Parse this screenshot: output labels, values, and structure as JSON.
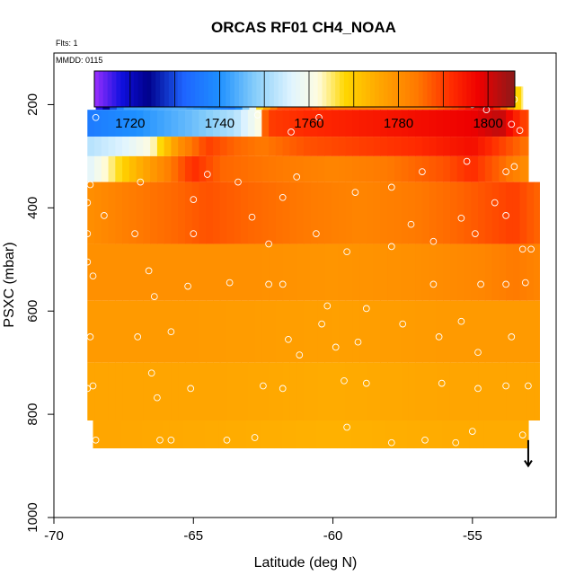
{
  "chart_data": {
    "type": "heatmap",
    "title": "ORCAS RF01 CH4_NOAA",
    "flts_label": "Flts: 1",
    "mmdd_label": "MMDD: 0115",
    "xlabel": "Latitude (deg N)",
    "ylabel": "PSXC (mbar)",
    "xlim": [
      -70,
      -52
    ],
    "ylim": [
      1000,
      100
    ],
    "x_ticks": [
      -70,
      -65,
      -60,
      -55
    ],
    "y_ticks": [
      200,
      400,
      600,
      800,
      1000
    ],
    "colorbar": {
      "range": [
        1712,
        1806
      ],
      "ticks": [
        1720,
        1740,
        1760,
        1780,
        1800
      ],
      "stops": [
        {
          "v": 1712,
          "c": "#9b30ff"
        },
        {
          "v": 1718,
          "c": "#1010e0"
        },
        {
          "v": 1724,
          "c": "#00008b"
        },
        {
          "v": 1732,
          "c": "#1e64ff"
        },
        {
          "v": 1740,
          "c": "#1e90ff"
        },
        {
          "v": 1748,
          "c": "#87cefa"
        },
        {
          "v": 1756,
          "c": "#e0f4ff"
        },
        {
          "v": 1762,
          "c": "#fffde0"
        },
        {
          "v": 1768,
          "c": "#ffd700"
        },
        {
          "v": 1776,
          "c": "#ffa500"
        },
        {
          "v": 1784,
          "c": "#ff7a00"
        },
        {
          "v": 1792,
          "c": "#ff2a00"
        },
        {
          "v": 1798,
          "c": "#ee0000"
        },
        {
          "v": 1806,
          "c": "#8b1a1a"
        }
      ]
    },
    "layers": [
      {
        "p_top": 165,
        "p_bot": 210,
        "lat_min": -68.5,
        "lat_max": -53.2,
        "profile": [
          [
            -68.5,
            1714
          ],
          [
            -68.0,
            1726
          ],
          [
            -67.5,
            1742
          ],
          [
            -65.5,
            1744
          ],
          [
            -64.5,
            1740
          ],
          [
            -63.5,
            1736
          ],
          [
            -63.0,
            1752
          ],
          [
            -62.5,
            1772
          ],
          [
            -62.0,
            1788
          ],
          [
            -61.0,
            1790
          ],
          [
            -60.0,
            1784
          ],
          [
            -58.0,
            1782
          ],
          [
            -56.5,
            1784
          ],
          [
            -55.5,
            1790
          ],
          [
            -54.5,
            1800
          ],
          [
            -54.0,
            1790
          ],
          [
            -53.5,
            1772
          ],
          [
            -53.2,
            1764
          ]
        ]
      },
      {
        "p_top": 210,
        "p_bot": 262,
        "lat_min": -68.8,
        "lat_max": -53.0,
        "profile": [
          [
            -68.8,
            1736
          ],
          [
            -67.0,
            1740
          ],
          [
            -65.0,
            1746
          ],
          [
            -63.5,
            1752
          ],
          [
            -62.6,
            1762
          ],
          [
            -62.4,
            1790
          ],
          [
            -61.0,
            1792
          ],
          [
            -59.0,
            1794
          ],
          [
            -57.0,
            1796
          ],
          [
            -55.0,
            1798
          ],
          [
            -54.0,
            1802
          ],
          [
            -53.5,
            1794
          ],
          [
            -53.0,
            1788
          ]
        ]
      },
      {
        "p_top": 262,
        "p_bot": 300,
        "lat_min": -68.8,
        "lat_max": -53.0,
        "profile": [
          [
            -68.8,
            1752
          ],
          [
            -67.5,
            1756
          ],
          [
            -66.5,
            1762
          ],
          [
            -65.5,
            1780
          ],
          [
            -64.5,
            1790
          ],
          [
            -63.5,
            1786
          ],
          [
            -62.5,
            1784
          ],
          [
            -61.0,
            1788
          ],
          [
            -59.0,
            1790
          ],
          [
            -57.0,
            1792
          ],
          [
            -55.0,
            1796
          ],
          [
            -54.0,
            1790
          ],
          [
            -53.0,
            1784
          ]
        ]
      },
      {
        "p_top": 300,
        "p_bot": 350,
        "lat_min": -68.8,
        "lat_max": -53.0,
        "profile": [
          [
            -68.8,
            1756
          ],
          [
            -68.0,
            1764
          ],
          [
            -67.0,
            1774
          ],
          [
            -66.0,
            1782
          ],
          [
            -65.0,
            1792
          ],
          [
            -64.0,
            1786
          ],
          [
            -62.0,
            1784
          ],
          [
            -60.0,
            1782
          ],
          [
            -58.0,
            1784
          ],
          [
            -56.0,
            1788
          ],
          [
            -55.0,
            1792
          ],
          [
            -54.0,
            1786
          ],
          [
            -53.0,
            1780
          ]
        ]
      },
      {
        "p_top": 350,
        "p_bot": 470,
        "lat_min": -68.8,
        "lat_max": -52.6,
        "profile": [
          [
            -68.8,
            1780
          ],
          [
            -67.0,
            1784
          ],
          [
            -65.5,
            1786
          ],
          [
            -64.5,
            1788
          ],
          [
            -63.0,
            1786
          ],
          [
            -61.0,
            1784
          ],
          [
            -59.0,
            1782
          ],
          [
            -57.0,
            1784
          ],
          [
            -55.5,
            1786
          ],
          [
            -54.5,
            1788
          ],
          [
            -53.5,
            1790
          ],
          [
            -52.6,
            1786
          ]
        ]
      },
      {
        "p_top": 470,
        "p_bot": 580,
        "lat_min": -68.8,
        "lat_max": -52.6,
        "profile": [
          [
            -68.8,
            1780
          ],
          [
            -66.0,
            1780
          ],
          [
            -63.0,
            1780
          ],
          [
            -60.0,
            1779
          ],
          [
            -57.0,
            1780
          ],
          [
            -54.5,
            1782
          ],
          [
            -53.5,
            1784
          ],
          [
            -52.6,
            1782
          ]
        ]
      },
      {
        "p_top": 580,
        "p_bot": 700,
        "lat_min": -68.8,
        "lat_max": -52.6,
        "profile": [
          [
            -68.8,
            1778
          ],
          [
            -65.0,
            1778
          ],
          [
            -60.0,
            1777
          ],
          [
            -56.0,
            1778
          ],
          [
            -52.6,
            1778
          ]
        ]
      },
      {
        "p_top": 700,
        "p_bot": 812,
        "lat_min": -68.8,
        "lat_max": -52.6,
        "profile": [
          [
            -68.8,
            1776
          ],
          [
            -64.0,
            1776
          ],
          [
            -60.0,
            1775
          ],
          [
            -56.0,
            1776
          ],
          [
            -52.6,
            1776
          ]
        ]
      },
      {
        "p_top": 812,
        "p_bot": 866,
        "lat_min": -68.6,
        "lat_max": -53.0,
        "profile": [
          [
            -68.6,
            1776
          ],
          [
            -64.0,
            1775
          ],
          [
            -60.0,
            1774
          ],
          [
            -56.0,
            1775
          ],
          [
            -53.0,
            1775
          ]
        ]
      }
    ],
    "points": [
      [
        -68.4,
        185
      ],
      [
        -67.7,
        185
      ],
      [
        -67.2,
        185
      ],
      [
        -66.7,
        185
      ],
      [
        -66.2,
        185
      ],
      [
        -65.7,
        185
      ],
      [
        -65.2,
        185
      ],
      [
        -64.7,
        185
      ],
      [
        -64.2,
        185
      ],
      [
        -63.6,
        185
      ],
      [
        -63.2,
        185
      ],
      [
        -62.6,
        190
      ],
      [
        -62.1,
        180
      ],
      [
        -61.2,
        185
      ],
      [
        -60.6,
        180
      ],
      [
        -59.8,
        185
      ],
      [
        -59.3,
        185
      ],
      [
        -58.8,
        185
      ],
      [
        -58.2,
        185
      ],
      [
        -57.6,
        185
      ],
      [
        -56.8,
        185
      ],
      [
        -56.3,
        185
      ],
      [
        -55.7,
        190
      ],
      [
        -55.0,
        200
      ],
      [
        -54.5,
        210
      ],
      [
        -54.0,
        185
      ],
      [
        -53.5,
        190
      ],
      [
        -68.6,
        200
      ],
      [
        -68.5,
        225
      ],
      [
        -62.7,
        220
      ],
      [
        -61.5,
        253
      ],
      [
        -60.5,
        225
      ],
      [
        -53.6,
        238
      ],
      [
        -53.3,
        250
      ],
      [
        -55.2,
        310
      ],
      [
        -53.8,
        330
      ],
      [
        -53.5,
        320
      ],
      [
        -56.8,
        330
      ],
      [
        -57.9,
        360
      ],
      [
        -59.2,
        370
      ],
      [
        -61.3,
        340
      ],
      [
        -61.8,
        380
      ],
      [
        -63.4,
        350
      ],
      [
        -64.5,
        335
      ],
      [
        -65.0,
        384
      ],
      [
        -66.9,
        350
      ],
      [
        -68.7,
        355
      ],
      [
        -68.8,
        390
      ],
      [
        -68.2,
        415
      ],
      [
        -67.1,
        450
      ],
      [
        -65.0,
        450
      ],
      [
        -62.9,
        418
      ],
      [
        -62.3,
        470
      ],
      [
        -60.6,
        450
      ],
      [
        -59.5,
        485
      ],
      [
        -57.9,
        475
      ],
      [
        -57.2,
        432
      ],
      [
        -56.4,
        465
      ],
      [
        -55.4,
        420
      ],
      [
        -54.9,
        450
      ],
      [
        -54.2,
        390
      ],
      [
        -53.8,
        415
      ],
      [
        -53.2,
        480
      ],
      [
        -68.8,
        450
      ],
      [
        -68.8,
        505
      ],
      [
        -68.6,
        532
      ],
      [
        -66.6,
        522
      ],
      [
        -66.4,
        572
      ],
      [
        -65.2,
        552
      ],
      [
        -63.7,
        545
      ],
      [
        -62.3,
        548
      ],
      [
        -61.8,
        548
      ],
      [
        -60.2,
        590
      ],
      [
        -58.8,
        595
      ],
      [
        -56.4,
        548
      ],
      [
        -54.7,
        548
      ],
      [
        -53.8,
        548
      ],
      [
        -53.1,
        545
      ],
      [
        -52.9,
        480
      ],
      [
        -68.7,
        650
      ],
      [
        -67.0,
        650
      ],
      [
        -65.8,
        640
      ],
      [
        -61.6,
        655
      ],
      [
        -61.2,
        685
      ],
      [
        -60.4,
        625
      ],
      [
        -59.9,
        670
      ],
      [
        -59.1,
        660
      ],
      [
        -57.5,
        625
      ],
      [
        -56.2,
        650
      ],
      [
        -55.4,
        620
      ],
      [
        -54.8,
        680
      ],
      [
        -53.6,
        650
      ],
      [
        -68.8,
        750
      ],
      [
        -68.6,
        745
      ],
      [
        -66.5,
        720
      ],
      [
        -66.3,
        768
      ],
      [
        -65.1,
        750
      ],
      [
        -62.5,
        745
      ],
      [
        -61.8,
        750
      ],
      [
        -59.6,
        735
      ],
      [
        -58.8,
        740
      ],
      [
        -56.1,
        740
      ],
      [
        -54.8,
        750
      ],
      [
        -53.8,
        745
      ],
      [
        -53.0,
        745
      ],
      [
        -68.5,
        850
      ],
      [
        -66.2,
        850
      ],
      [
        -65.8,
        850
      ],
      [
        -63.8,
        850
      ],
      [
        -62.8,
        845
      ],
      [
        -59.5,
        825
      ],
      [
        -57.9,
        855
      ],
      [
        -56.7,
        850
      ],
      [
        -55.6,
        855
      ],
      [
        -55.0,
        833
      ],
      [
        -53.2,
        840
      ]
    ],
    "surface_arrow_lat": -53.0,
    "surface_arrow_from": 850,
    "surface_arrow_to": 900
  }
}
